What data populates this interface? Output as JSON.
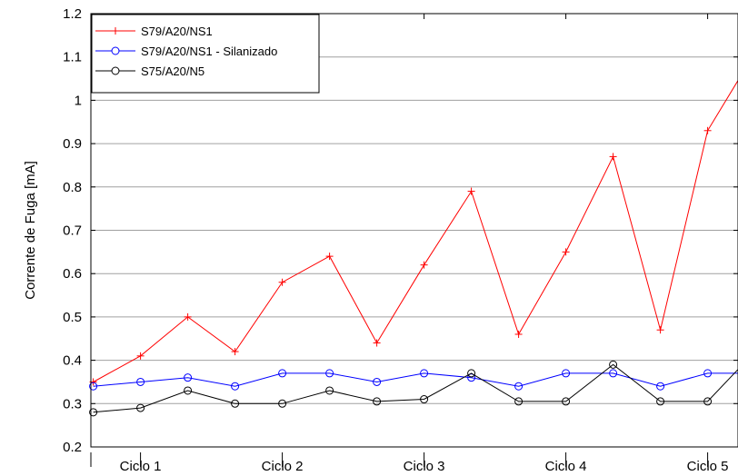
{
  "chart_data": {
    "type": "line",
    "ylabel": "Corrente de Fuga [mA]",
    "ylim": [
      0.2,
      1.2
    ],
    "yticks": [
      0.2,
      0.3,
      0.4,
      0.5,
      0.6,
      0.7,
      0.8,
      0.9,
      1,
      1.1,
      1.2
    ],
    "ytick_labels": [
      "0.2",
      "0.3",
      "0.4",
      "0.5",
      "0.6",
      "0.7",
      "0.8",
      "0.9",
      "1",
      "1.1",
      "1.2"
    ],
    "categories": [
      "Ciclo 1",
      "Ciclo 2",
      "Ciclo 3",
      "Ciclo 4",
      "Ciclo 5"
    ],
    "x": [
      1,
      2,
      3,
      4,
      5,
      6,
      7,
      8,
      9,
      10,
      11,
      12,
      13,
      14,
      15
    ],
    "grid": true,
    "legend_position": "top-left",
    "series": [
      {
        "name": "S79/A20/NS1",
        "color": "#ff0000",
        "marker": "plus",
        "values": [
          0.35,
          0.41,
          0.5,
          0.42,
          0.58,
          0.64,
          0.44,
          0.62,
          0.79,
          0.46,
          0.65,
          0.87,
          0.47,
          0.93,
          1.11
        ]
      },
      {
        "name": "S79/A20/NS1 - Silanizado",
        "color": "#0000ff",
        "marker": "circle",
        "values": [
          0.34,
          0.35,
          0.36,
          0.34,
          0.37,
          0.37,
          0.35,
          0.37,
          0.36,
          0.34,
          0.37,
          0.37,
          0.34,
          0.37,
          0.37
        ]
      },
      {
        "name": "S75/A20/N5",
        "color": "#000000",
        "marker": "circle",
        "values": [
          0.28,
          0.29,
          0.33,
          0.3,
          0.3,
          0.33,
          0.305,
          0.31,
          0.37,
          0.305,
          0.305,
          0.39,
          0.305,
          0.305,
          0.42
        ]
      }
    ]
  }
}
